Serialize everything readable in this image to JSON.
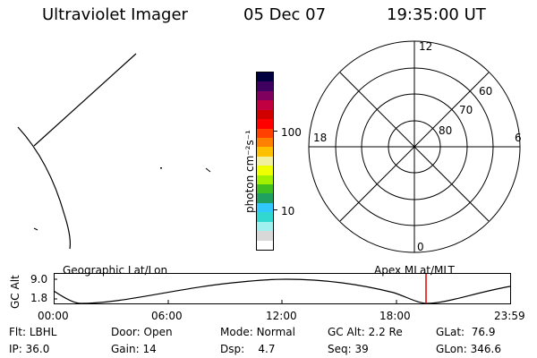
{
  "header": {
    "title": "Ultraviolet Imager",
    "date": "05 Dec 07",
    "time": "19:35:00 UT"
  },
  "colorbar": {
    "unit": "photon cm⁻²s⁻¹",
    "tick_labels": [
      "100",
      "10"
    ],
    "colors": [
      "#ffffff",
      "#d8d8d8",
      "#a0f0f0",
      "#30d8d0",
      "#30c8ff",
      "#20a060",
      "#40c020",
      "#a0f000",
      "#f0ff00",
      "#f0f0a0",
      "#ffc000",
      "#ff8000",
      "#ff4000",
      "#ff0000",
      "#d00000",
      "#c00040",
      "#800060",
      "#400060",
      "#000040"
    ]
  },
  "polar": {
    "mlt_labels": {
      "top": "12",
      "left": "18",
      "right": "6",
      "bottom": "0"
    },
    "lat_labels": [
      "60",
      "70",
      "80"
    ]
  },
  "orbit_panel": {
    "left_label": "Geographic Lat/Lon",
    "right_label": "Apex MLat/MLT",
    "y_axis_label": "GC Alt",
    "y_ticks": [
      "9.0",
      "1.8"
    ],
    "x_ticks": [
      "00:00",
      "06:00",
      "12:00",
      "18:00",
      "23:59"
    ],
    "marker_color": "#e00000"
  },
  "info": {
    "flt_label": "Flt:",
    "flt_value": "LBHL",
    "ip_label": "IP:",
    "ip_value": "36.0",
    "door_label": "Door:",
    "door_value": "Open",
    "gain_label": "Gain:",
    "gain_value": "14",
    "mode_label": "Mode:",
    "mode_value": "Normal",
    "dsp_label": "Dsp:",
    "dsp_value": "4.7",
    "gcalt_label": "GC Alt:",
    "gcalt_value": "2.2 Re",
    "seq_label": "Seq:",
    "seq_value": "39",
    "glat_label": "GLat:",
    "glat_value": "76.9",
    "glon_label": "GLon:",
    "glon_value": "346.6"
  }
}
